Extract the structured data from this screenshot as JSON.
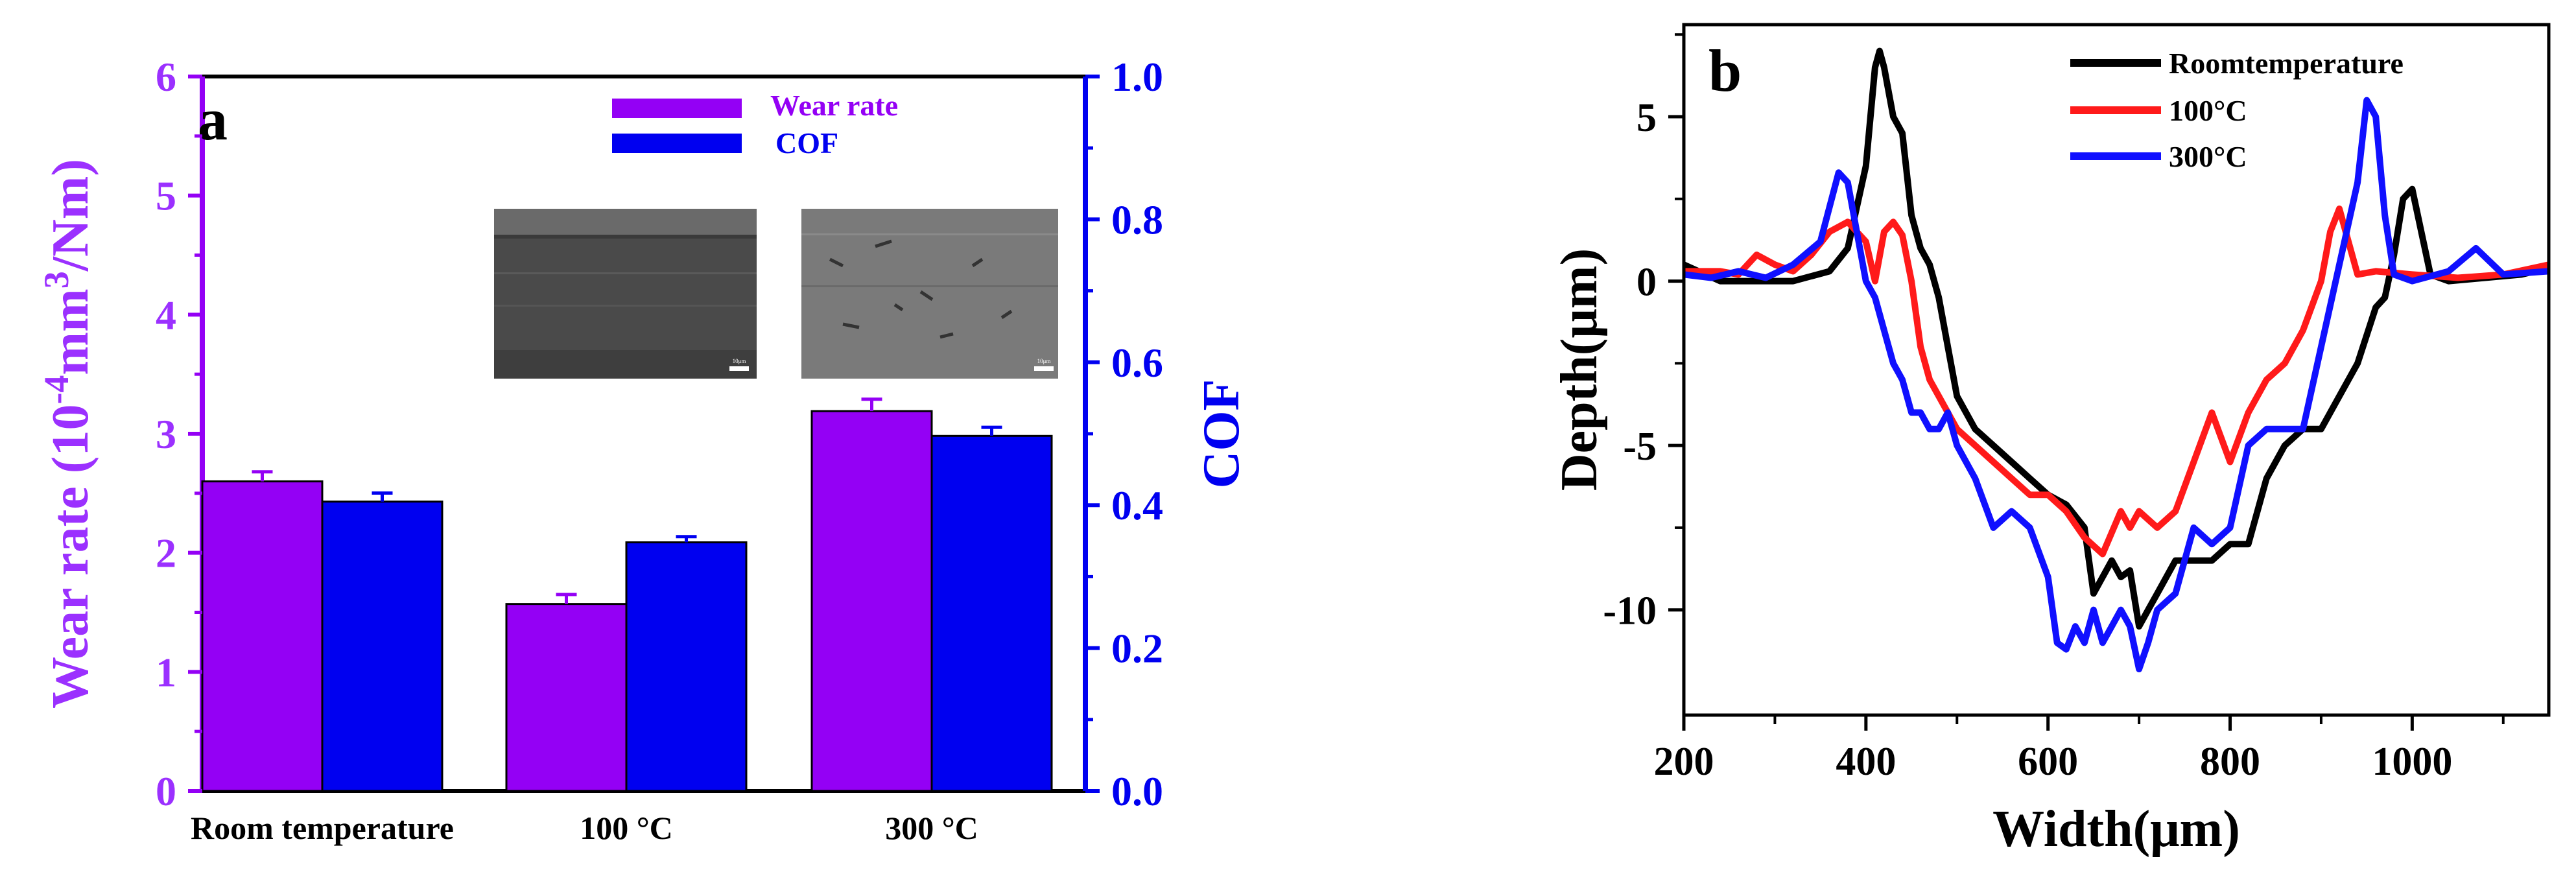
{
  "chart_data": [
    {
      "type": "bar",
      "panel_label": "a",
      "categories": [
        "Room temperature",
        "100 °C",
        "300 °C"
      ],
      "series": [
        {
          "name": "Wear rate",
          "axis": "left",
          "color": "#9400f5",
          "values": [
            2.6,
            1.57,
            3.19
          ],
          "errors": [
            0.08,
            0.08,
            0.1
          ]
        },
        {
          "name": "COF",
          "axis": "right",
          "color": "#0000f0",
          "values": [
            0.405,
            0.348,
            0.497
          ],
          "errors": [
            0.012,
            0.008,
            0.012
          ]
        }
      ],
      "left_axis": {
        "label_parts": {
          "pre": "Wear rate (10",
          "sup1": "-4",
          "mid": "mm",
          "sup2": "3",
          "post": "/Nm)"
        },
        "ylim": [
          0,
          6
        ],
        "ticks": [
          "0",
          "1",
          "2",
          "3",
          "4",
          "5",
          "6"
        ],
        "color": "#9b30ff"
      },
      "right_axis": {
        "label": "COF",
        "ylim": [
          0,
          1.0
        ],
        "ticks": [
          "0.0",
          "0.2",
          "0.4",
          "0.6",
          "0.8",
          "1.0"
        ],
        "color": "#0000f0"
      },
      "legend": [
        "Wear rate",
        "COF"
      ],
      "inset_images": [
        "sem-wear-track-100C",
        "sem-wear-track-300C"
      ],
      "scale_bar_label": "10μm"
    },
    {
      "type": "line",
      "panel_label": "b",
      "xlabel": "Width(μm)",
      "ylabel": "Depth(μm)",
      "xlim": [
        200,
        1150
      ],
      "ylim": [
        -13.2,
        7.8
      ],
      "xticks": [
        "200",
        "400",
        "600",
        "800",
        "1000"
      ],
      "yticks": [
        "5",
        "0",
        "-5",
        "-10"
      ],
      "series": [
        {
          "name": "Roomtemperature",
          "color": "#000000",
          "x": [
            200,
            240,
            280,
            320,
            360,
            380,
            400,
            410,
            415,
            420,
            430,
            440,
            450,
            460,
            470,
            480,
            490,
            500,
            520,
            540,
            560,
            580,
            600,
            620,
            640,
            650,
            660,
            670,
            680,
            690,
            700,
            710,
            720,
            740,
            760,
            780,
            800,
            820,
            840,
            860,
            880,
            900,
            920,
            940,
            960,
            970,
            980,
            990,
            1000,
            1010,
            1020,
            1040,
            1080,
            1120,
            1150
          ],
          "y": [
            0.5,
            0,
            0,
            0,
            0.3,
            1,
            3.5,
            6.5,
            7,
            6.5,
            5,
            4.5,
            2,
            1,
            0.5,
            -0.5,
            -2,
            -3.5,
            -4.5,
            -5,
            -5.5,
            -6,
            -6.5,
            -6.8,
            -7.5,
            -9.5,
            -9,
            -8.5,
            -9,
            -8.8,
            -10.5,
            -10,
            -9.5,
            -8.5,
            -8.5,
            -8.5,
            -8,
            -8,
            -6,
            -5,
            -4.5,
            -4.5,
            -3.5,
            -2.5,
            -0.8,
            -0.5,
            0.8,
            2.5,
            2.8,
            1.5,
            0.2,
            0,
            0.1,
            0.2,
            0.4
          ]
        },
        {
          "name": "100°C",
          "color": "#ff1a1a",
          "x": [
            200,
            240,
            260,
            280,
            300,
            320,
            340,
            360,
            380,
            400,
            410,
            420,
            430,
            440,
            450,
            460,
            470,
            480,
            500,
            520,
            540,
            560,
            580,
            600,
            620,
            640,
            660,
            680,
            690,
            700,
            720,
            740,
            760,
            780,
            800,
            820,
            840,
            860,
            880,
            900,
            910,
            920,
            940,
            960,
            1000,
            1050,
            1100,
            1150
          ],
          "y": [
            0.3,
            0.3,
            0.2,
            0.8,
            0.5,
            0.3,
            0.8,
            1.5,
            1.8,
            1.2,
            0,
            1.5,
            1.8,
            1.4,
            0,
            -2,
            -3,
            -3.5,
            -4.5,
            -5,
            -5.5,
            -6,
            -6.5,
            -6.5,
            -7,
            -7.8,
            -8.3,
            -7,
            -7.5,
            -7,
            -7.5,
            -7,
            -5.5,
            -4,
            -5.5,
            -4,
            -3,
            -2.5,
            -1.5,
            0,
            1.5,
            2.2,
            0.2,
            0.3,
            0.2,
            0.1,
            0.2,
            0.5
          ]
        },
        {
          "name": "300°C",
          "color": "#1010ff",
          "x": [
            200,
            230,
            260,
            290,
            320,
            350,
            370,
            380,
            390,
            400,
            410,
            420,
            430,
            440,
            450,
            460,
            470,
            480,
            490,
            500,
            520,
            540,
            560,
            580,
            600,
            610,
            620,
            630,
            640,
            650,
            660,
            670,
            680,
            690,
            700,
            710,
            720,
            740,
            760,
            780,
            800,
            820,
            840,
            860,
            880,
            900,
            920,
            940,
            950,
            960,
            970,
            980,
            1000,
            1040,
            1070,
            1100,
            1150
          ],
          "y": [
            0.2,
            0.1,
            0.3,
            0.1,
            0.5,
            1.2,
            3.3,
            3,
            1.5,
            0,
            -0.5,
            -1.5,
            -2.5,
            -3,
            -4,
            -4,
            -4.5,
            -4.5,
            -4,
            -5,
            -6,
            -7.5,
            -7,
            -7.5,
            -9,
            -11,
            -11.2,
            -10.5,
            -11,
            -10,
            -11,
            -10.5,
            -10,
            -10.5,
            -11.8,
            -11,
            -10,
            -9.5,
            -7.5,
            -8,
            -7.5,
            -5,
            -4.5,
            -4.5,
            -4.5,
            -2,
            0.5,
            3,
            5.5,
            5,
            2,
            0.2,
            0,
            0.3,
            1,
            0.2,
            0.3
          ]
        }
      ],
      "legend": [
        "Roomtemperature",
        "100°C",
        "300°C"
      ]
    }
  ]
}
